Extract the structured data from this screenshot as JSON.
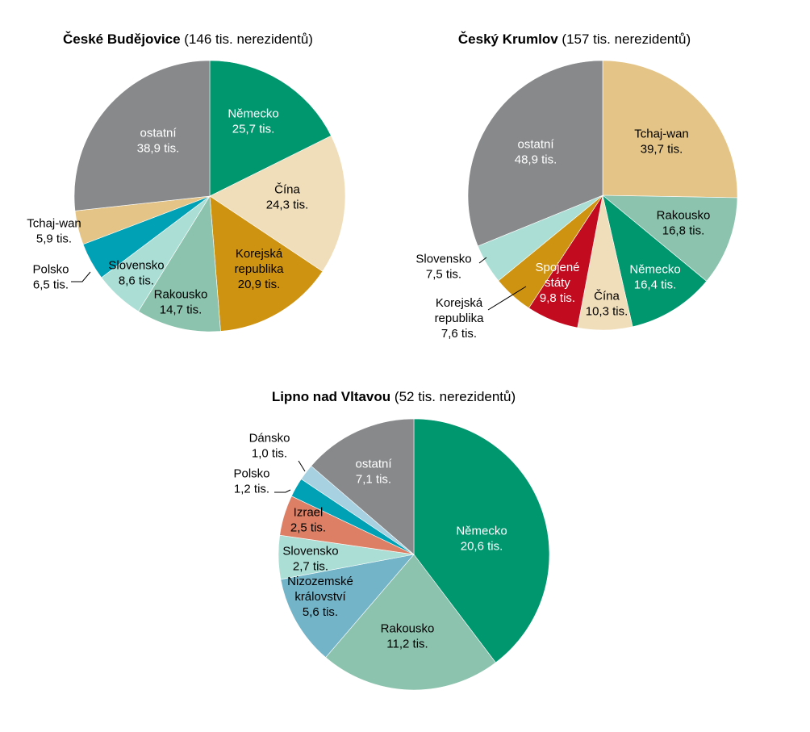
{
  "unit": "tis.",
  "colors": {
    "gray": "#87898b",
    "green": "#00966e",
    "light_green": "#8cc3ae",
    "pale_mint": "#abdfd6",
    "teal": "#00a0b5",
    "sand": "#e4c587",
    "beige": "#f0ddba",
    "mustard": "#cf9312",
    "red": "#c20b1e",
    "steel_blue": "#73b4c8",
    "light_blue": "#a7d0e0",
    "salmon": "#dd7f64"
  },
  "chart_data": [
    {
      "type": "pie",
      "title": "České Budějovice",
      "subtitle": "(146 tis. nerezidentů)",
      "slices": [
        {
          "label": "Německo",
          "value": 25.7,
          "value_text": "25,7 tis.",
          "color": "#00966e",
          "text_color": "#ffffff"
        },
        {
          "label": "Čína",
          "value": 24.3,
          "value_text": "24,3 tis.",
          "color": "#f0ddba",
          "text_color": "#000000"
        },
        {
          "label": "Korejská republika",
          "value": 20.9,
          "value_text": "20,9 tis.",
          "color": "#cf9312",
          "text_color": "#000000"
        },
        {
          "label": "Rakousko",
          "value": 14.7,
          "value_text": "14,7 tis.",
          "color": "#8cc3ae",
          "text_color": "#000000"
        },
        {
          "label": "Slovensko",
          "value": 8.6,
          "value_text": "8,6 tis.",
          "color": "#abdfd6",
          "text_color": "#000000"
        },
        {
          "label": "Polsko",
          "value": 6.5,
          "value_text": "6,5 tis.",
          "color": "#00a0b5",
          "text_color": "#000000"
        },
        {
          "label": "Tchaj-wan",
          "value": 5.9,
          "value_text": "5,9 tis.",
          "color": "#e4c587",
          "text_color": "#000000"
        },
        {
          "label": "ostatní",
          "value": 38.9,
          "value_text": "38,9 tis.",
          "color": "#87898b",
          "text_color": "#ffffff"
        }
      ]
    },
    {
      "type": "pie",
      "title": "Český Krumlov",
      "subtitle": "(157 tis. nerezidentů)",
      "slices": [
        {
          "label": "Tchaj-wan",
          "value": 39.7,
          "value_text": "39,7 tis.",
          "color": "#e4c587",
          "text_color": "#000000"
        },
        {
          "label": "Rakousko",
          "value": 16.8,
          "value_text": "16,8 tis.",
          "color": "#8cc3ae",
          "text_color": "#000000"
        },
        {
          "label": "Německo",
          "value": 16.4,
          "value_text": "16,4 tis.",
          "color": "#00966e",
          "text_color": "#ffffff"
        },
        {
          "label": "Čína",
          "value": 10.3,
          "value_text": "10,3 tis.",
          "color": "#f0ddba",
          "text_color": "#000000"
        },
        {
          "label": "Spojené státy",
          "value": 9.8,
          "value_text": "9,8 tis.",
          "color": "#c20b1e",
          "text_color": "#ffffff"
        },
        {
          "label": "Korejská republika",
          "value": 7.6,
          "value_text": "7,6 tis.",
          "color": "#cf9312",
          "text_color": "#000000"
        },
        {
          "label": "Slovensko",
          "value": 7.5,
          "value_text": "7,5 tis.",
          "color": "#abdfd6",
          "text_color": "#000000"
        },
        {
          "label": "ostatní",
          "value": 48.9,
          "value_text": "48,9 tis.",
          "color": "#87898b",
          "text_color": "#ffffff"
        }
      ]
    },
    {
      "type": "pie",
      "title": "Lipno nad Vltavou",
      "subtitle": "(52 tis. nerezidentů)",
      "slices": [
        {
          "label": "Německo",
          "value": 20.6,
          "value_text": "20,6 tis.",
          "color": "#00966e",
          "text_color": "#ffffff"
        },
        {
          "label": "Rakousko",
          "value": 11.2,
          "value_text": "11,2 tis.",
          "color": "#8cc3ae",
          "text_color": "#000000"
        },
        {
          "label": "Nizozemské království",
          "value": 5.6,
          "value_text": "5,6 tis.",
          "color": "#73b4c8",
          "text_color": "#000000"
        },
        {
          "label": "Slovensko",
          "value": 2.7,
          "value_text": "2,7 tis.",
          "color": "#abdfd6",
          "text_color": "#000000"
        },
        {
          "label": "Izrael",
          "value": 2.5,
          "value_text": "2,5 tis.",
          "color": "#dd7f64",
          "text_color": "#000000"
        },
        {
          "label": "Polsko",
          "value": 1.2,
          "value_text": "1,2 tis.",
          "color": "#00a0b5",
          "text_color": "#000000"
        },
        {
          "label": "Dánsko",
          "value": 1.0,
          "value_text": "1,0 tis.",
          "color": "#a7d0e0",
          "text_color": "#000000"
        },
        {
          "label": "ostatní",
          "value": 7.1,
          "value_text": "7,1 tis.",
          "color": "#87898b",
          "text_color": "#ffffff"
        }
      ]
    }
  ]
}
